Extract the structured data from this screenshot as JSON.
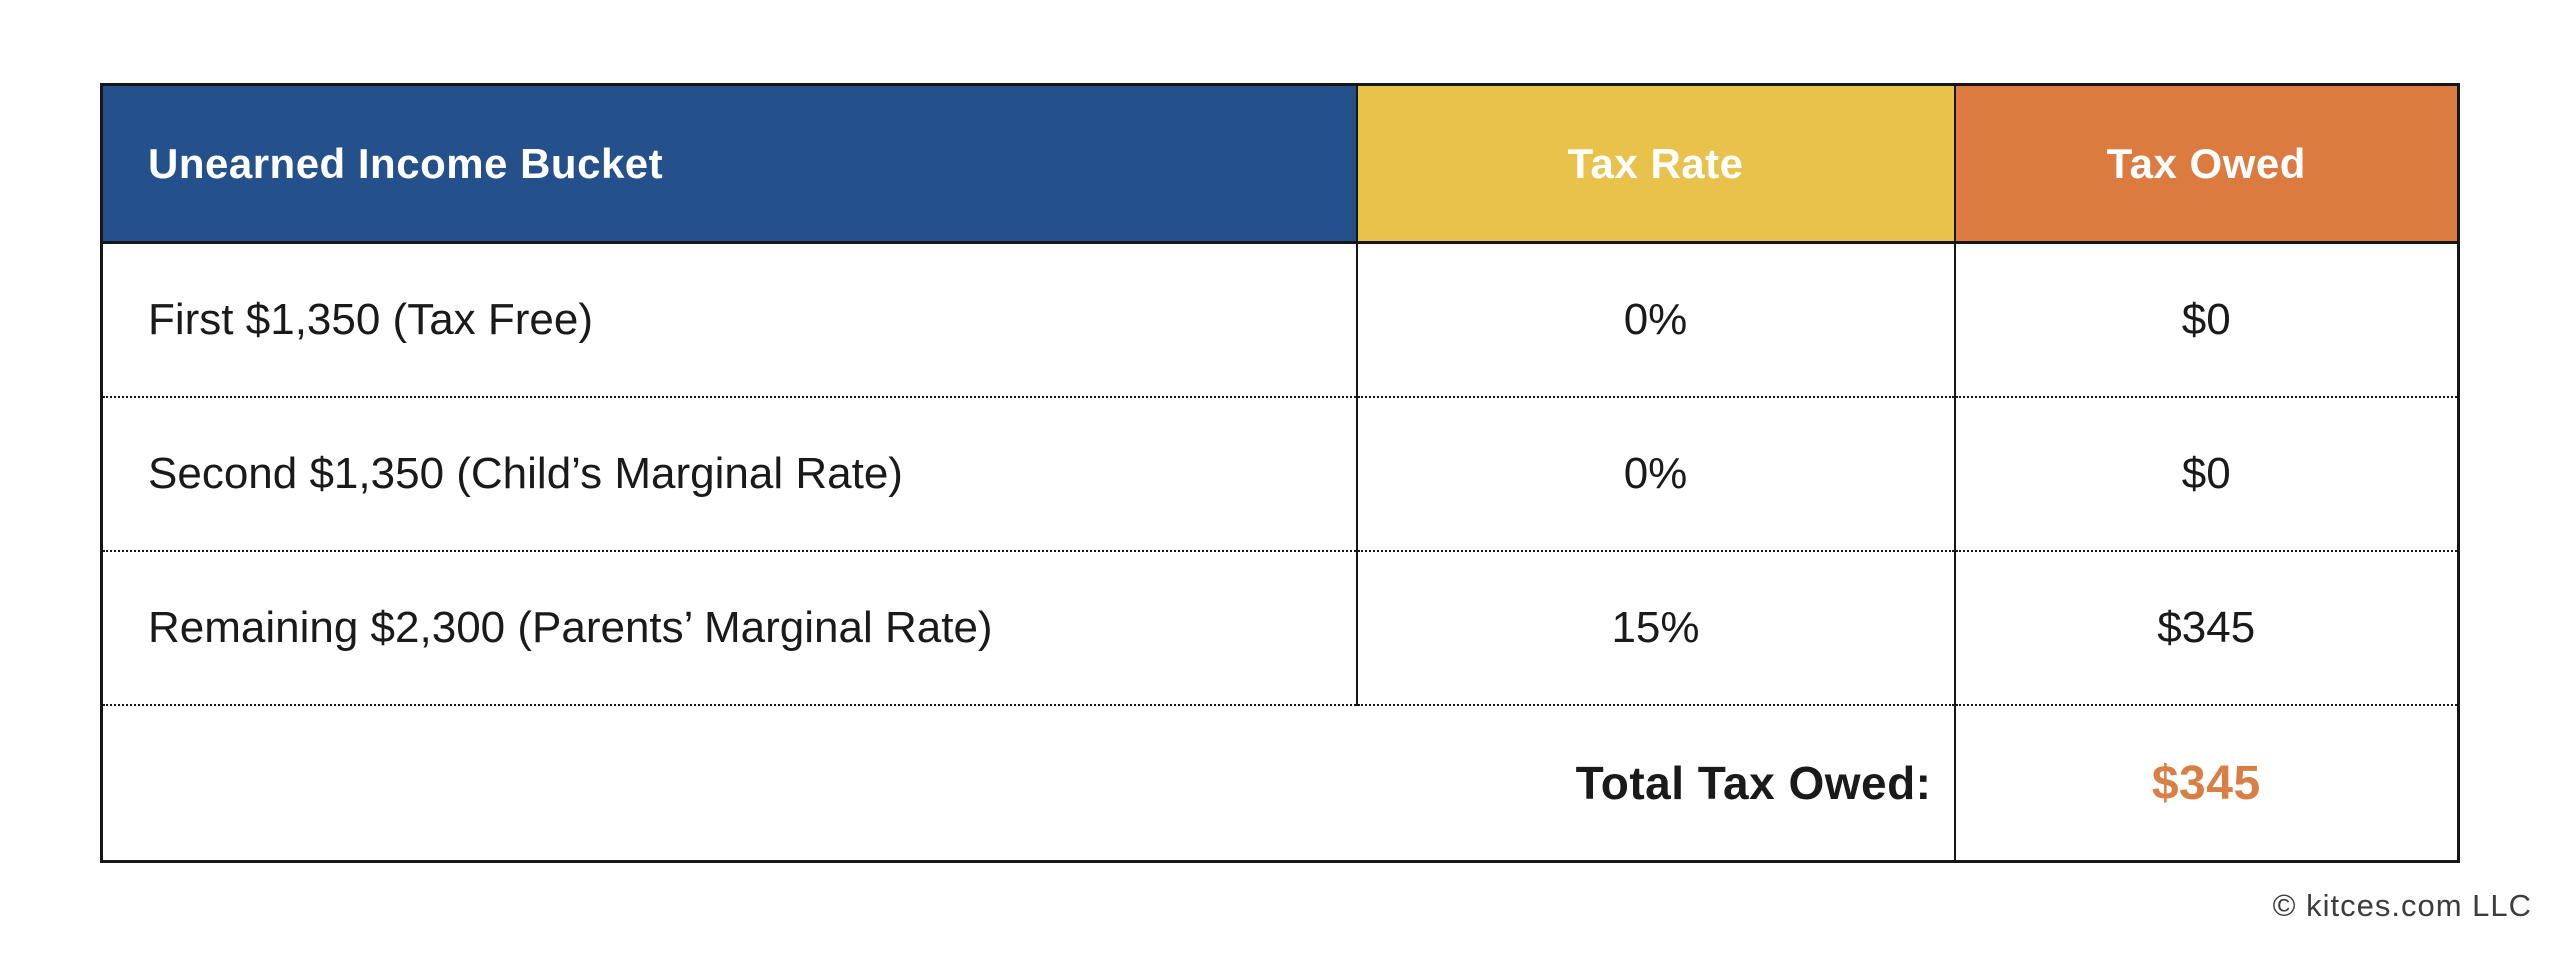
{
  "chart_data": {
    "type": "table",
    "columns": [
      "Unearned Income Bucket",
      "Tax Rate",
      "Tax Owed"
    ],
    "rows": [
      [
        "First $1,350 (Tax Free)",
        "0%",
        "$0"
      ],
      [
        "Second $1,350 (Child’s Marginal Rate)",
        "0%",
        "$0"
      ],
      [
        "Remaining $2,300 (Parents’ Marginal Rate)",
        "15%",
        "$345"
      ]
    ],
    "total_label": "Total Tax Owed:",
    "total_value": "$345",
    "layout": "3-column table, dotted row separators, total row merges first two columns"
  },
  "footer": {
    "copyright": "© kitces.com LLC"
  },
  "colors": {
    "header_bucket_bg": "#24508C",
    "header_rate_bg": "#E8C24A",
    "header_owed_bg": "#DC7B40",
    "header_text": "#FFFFFF",
    "body_text": "#1A1A1A",
    "border": "#161616",
    "total_value_text": "#D97F45",
    "copyright_text": "#3D3D3D",
    "background": "#FFFFFF"
  }
}
